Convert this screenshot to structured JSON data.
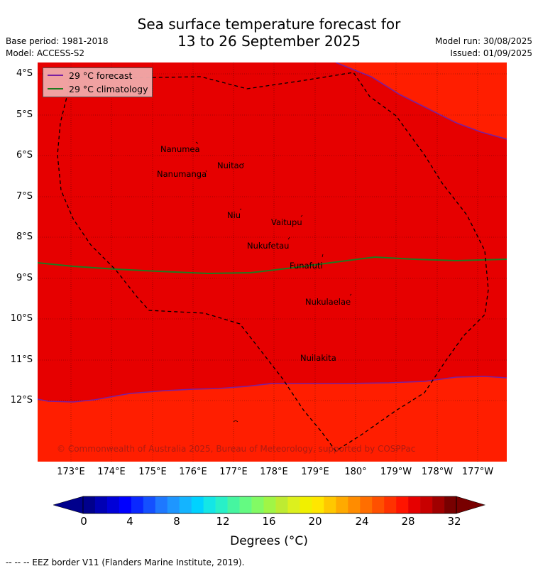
{
  "title_line1": "Sea surface temperature forecast for",
  "title_line2": "13 to 26 September 2025",
  "base_period": "Base period: 1981-2018",
  "model": "Model: ACCESS-S2",
  "model_run": "Model run: 30/08/2025",
  "issued": "Issued: 01/09/2025",
  "legend": {
    "forecast_label": "29 °C  forecast",
    "climatology_label": "29 °C  climatology",
    "forecast_color": "#7a1fa0",
    "climatology_color": "#1f7a1f"
  },
  "islands": [
    "Nanumea",
    "Nuitao",
    "Nanumanga",
    "Niu",
    "Vaitupu",
    "Nukufetau",
    "Funafuti",
    "Nukulaelae",
    "Nuilakita"
  ],
  "lat_labels": [
    "4°S",
    "5°S",
    "6°S",
    "7°S",
    "8°S",
    "9°S",
    "10°S",
    "11°S",
    "12°S"
  ],
  "lon_labels": [
    "173°E",
    "174°E",
    "175°E",
    "176°E",
    "177°E",
    "178°E",
    "179°E",
    "180°",
    "179°W",
    "178°W",
    "177°W"
  ],
  "copyright": "© Commonwealth of Australia 2025, Bureau of Meteorology, supported by COSPPac",
  "colorbar": {
    "tick_labels": [
      "0",
      "4",
      "8",
      "12",
      "16",
      "20",
      "24",
      "28",
      "32"
    ],
    "units_label": "Degrees (°C)",
    "colors": [
      "#00008c",
      "#0000b4",
      "#0000d8",
      "#0000ff",
      "#0a28ff",
      "#1450ff",
      "#1e78ff",
      "#1e96ff",
      "#14b4ff",
      "#00d2ff",
      "#14e6e6",
      "#28f0c8",
      "#46f5a0",
      "#64fa82",
      "#82fa64",
      "#a0f546",
      "#beeb32",
      "#dcf01e",
      "#f0f000",
      "#ffe600",
      "#ffc800",
      "#ffaa00",
      "#ff8c00",
      "#ff6e00",
      "#ff5000",
      "#ff3200",
      "#ff1400",
      "#e60000",
      "#c80000",
      "#a00000",
      "#780000"
    ],
    "under_color": "#00008c",
    "over_color": "#780000"
  },
  "map_colors": {
    "warm_region": "#e60000",
    "cooler_region": "#ff1e00"
  },
  "footer": "--  --  -- EEZ border V11 (Flanders Marine Institute, 2019)."
}
